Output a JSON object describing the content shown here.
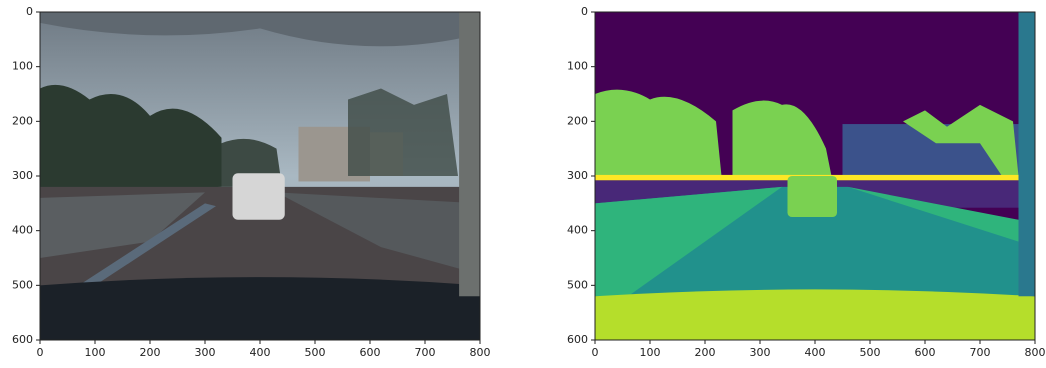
{
  "chart_data": [
    {
      "type": "image",
      "xlim": [
        0,
        800
      ],
      "ylim": [
        600,
        0
      ],
      "xticks": [
        0,
        100,
        200,
        300,
        400,
        500,
        600,
        700,
        800
      ],
      "yticks": [
        0,
        100,
        200,
        300,
        400,
        500,
        600
      ]
    },
    {
      "type": "image",
      "xlim": [
        0,
        800
      ],
      "ylim": [
        600,
        0
      ],
      "xticks": [
        0,
        100,
        200,
        300,
        400,
        500,
        600,
        700,
        800
      ],
      "yticks": [
        0,
        100,
        200,
        300,
        400,
        500,
        600
      ]
    }
  ]
}
